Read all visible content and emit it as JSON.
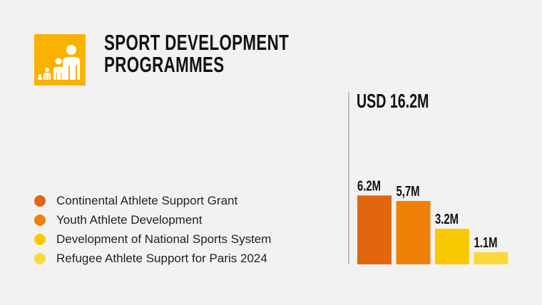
{
  "header": {
    "title_line1": "SPORT DEVELOPMENT",
    "title_line2": "PROGRAMMES",
    "icon": "people-growth-icon",
    "icon_color": "#fbb100"
  },
  "chart_data": {
    "type": "bar",
    "title": "SPORT DEVELOPMENT PROGRAMMES",
    "total_label": "USD 16.2M",
    "categories": [
      "Continental Athlete Support Grant",
      "Youth Athlete Development",
      "Development of National Sports System",
      "Refugee Athlete Support for Paris 2024"
    ],
    "values": [
      6.2,
      5.7,
      3.2,
      1.1
    ],
    "value_labels": [
      "6.2M",
      "5,7M",
      "3.2M",
      "1.1M"
    ],
    "colors": [
      "#e2660f",
      "#ee8208",
      "#f9c900",
      "#fbd93a"
    ],
    "unit": "USD million",
    "legend_position": "left"
  }
}
